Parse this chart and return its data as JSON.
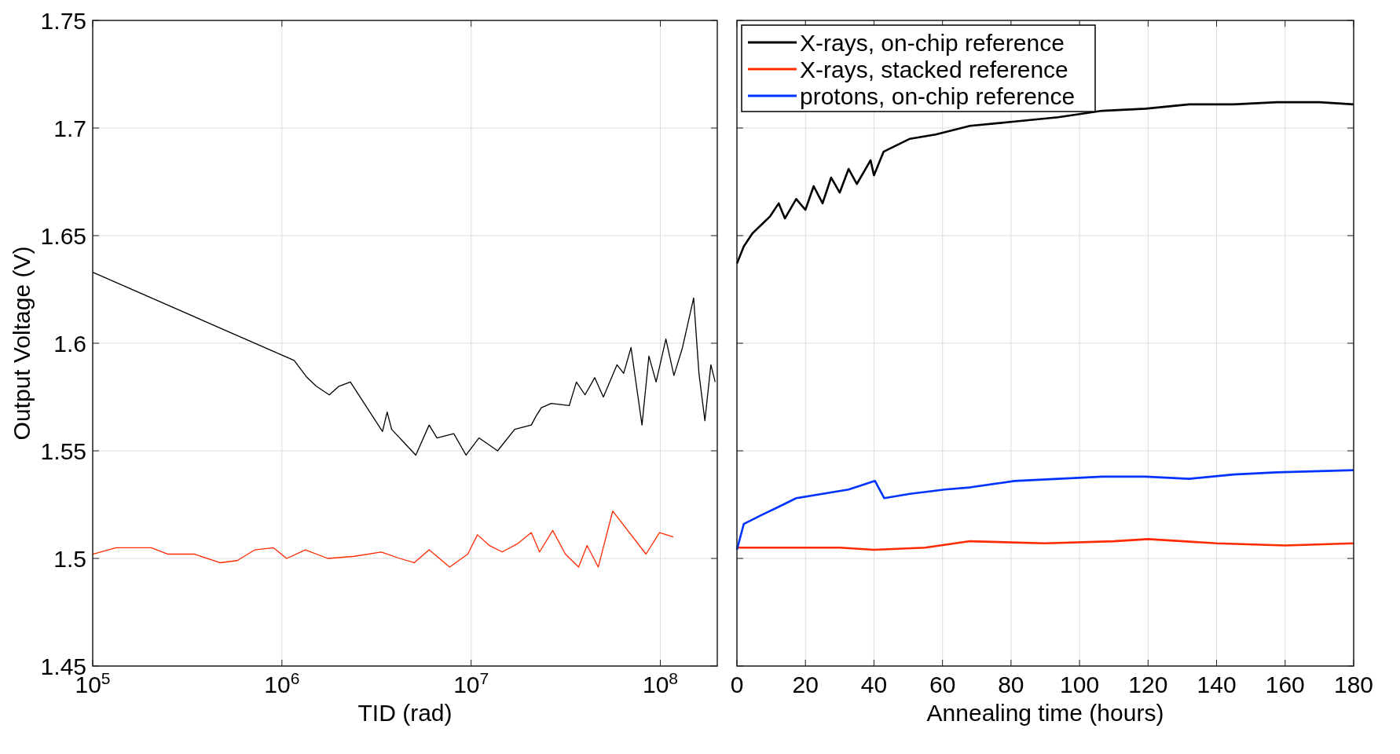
{
  "chart_data": [
    {
      "type": "line",
      "xlabel": "TID (rad)",
      "ylabel": "Output Voltage (V)",
      "log": "x",
      "grid": true,
      "legend": false,
      "xlim": [
        100000,
        200000000
      ],
      "xticks": [
        {
          "value": 100000,
          "label": "10$^{5}$"
        },
        {
          "value": 1000000,
          "label": "10$^{6}$"
        },
        {
          "value": 10000000,
          "label": "10$^{7}$"
        },
        {
          "value": 100000000,
          "label": "10$^{8}$"
        }
      ],
      "ylim": [
        1.45,
        1.75
      ],
      "yticks": [
        1.45,
        1.5,
        1.55,
        1.6,
        1.65,
        1.7,
        1.75
      ],
      "series": [
        {
          "color": "#000000",
          "x": [
            100000,
            1160000,
            1360000,
            1520000,
            1780000,
            2000000,
            2300000,
            3400000,
            3600000,
            3800000,
            5100000,
            6000000,
            6600000,
            8100000,
            9400000,
            11000000,
            13800000,
            17000000,
            20800000,
            22000000,
            23500000,
            26500000,
            33000000,
            36000000,
            40000000,
            45000000,
            50000000,
            59000000,
            64000000,
            70000000,
            80000000,
            87000000,
            95000000,
            107000000,
            118000000,
            131000000,
            150000000,
            160000000,
            172000000,
            185000000,
            195000000
          ],
          "values": [
            1.633,
            1.592,
            1.584,
            1.58,
            1.576,
            1.58,
            1.582,
            1.559,
            1.568,
            1.56,
            1.548,
            1.562,
            1.556,
            1.558,
            1.548,
            1.556,
            1.55,
            1.56,
            1.562,
            1.566,
            1.57,
            1.572,
            1.571,
            1.582,
            1.576,
            1.584,
            1.575,
            1.59,
            1.586,
            1.598,
            1.562,
            1.594,
            1.582,
            1.602,
            1.585,
            1.598,
            1.621,
            1.586,
            1.564,
            1.59,
            1.582
          ]
        },
        {
          "color": "#ff2a00",
          "x": [
            100000,
            133000,
            204000,
            250000,
            345000,
            470000,
            580000,
            720000,
            900000,
            1060000,
            1330000,
            1750000,
            2420000,
            3350000,
            4200000,
            5000000,
            6000000,
            7700000,
            9600000,
            10800000,
            12500000,
            14600000,
            17700000,
            20800000,
            23000000,
            27000000,
            31500000,
            37000000,
            41000000,
            47000000,
            56000000,
            84000000,
            99000000,
            117000000
          ],
          "values": [
            1.502,
            1.505,
            1.505,
            1.502,
            1.502,
            1.498,
            1.499,
            1.504,
            1.505,
            1.5,
            1.504,
            1.5,
            1.501,
            1.503,
            1.5,
            1.498,
            1.504,
            1.496,
            1.502,
            1.511,
            1.506,
            1.503,
            1.507,
            1.512,
            1.503,
            1.513,
            1.502,
            1.496,
            1.506,
            1.496,
            1.522,
            1.502,
            1.512,
            1.51
          ]
        }
      ]
    },
    {
      "type": "line",
      "xlabel": "Annealing time (hours)",
      "grid": true,
      "legend": "top left",
      "tick_labels": "x",
      "xlim": [
        0,
        180
      ],
      "xticks": [
        0,
        20,
        40,
        60,
        80,
        100,
        120,
        140,
        160,
        180
      ],
      "ylim": [
        1.45,
        1.75
      ],
      "yticks": [
        1.45,
        1.5,
        1.55,
        1.6,
        1.65,
        1.7,
        1.75
      ],
      "series": [
        {
          "name": "X-rays, on-chip reference",
          "color": "#000000",
          "x": [
            0,
            2,
            4.5,
            9.7,
            12.2,
            14,
            17.3,
            20,
            22.4,
            25,
            27.5,
            30,
            32.6,
            35,
            39,
            40,
            42.8,
            50.5,
            58,
            68,
            81,
            93.8,
            106.6,
            119.3,
            132,
            145,
            157.6,
            170,
            180
          ],
          "values": [
            1.637,
            1.645,
            1.651,
            1.659,
            1.665,
            1.658,
            1.667,
            1.662,
            1.673,
            1.665,
            1.677,
            1.67,
            1.681,
            1.674,
            1.685,
            1.678,
            1.689,
            1.695,
            1.697,
            1.701,
            1.703,
            1.705,
            1.708,
            1.709,
            1.711,
            1.711,
            1.712,
            1.712,
            1.711
          ]
        },
        {
          "name": "X-rays, stacked reference",
          "color": "#ff2a00",
          "x": [
            0,
            10,
            30,
            40,
            55,
            68,
            90,
            110,
            120,
            140,
            160,
            180
          ],
          "values": [
            1.505,
            1.505,
            1.505,
            1.504,
            1.505,
            1.508,
            1.507,
            1.508,
            1.509,
            1.507,
            1.506,
            1.507
          ]
        },
        {
          "name": "protons, on-chip reference",
          "color": "#0033ff",
          "x": [
            0,
            2,
            7,
            12.2,
            17.3,
            25,
            32.6,
            40.3,
            43,
            50.5,
            60.7,
            68,
            81,
            93.8,
            106.6,
            119.3,
            132,
            145,
            157.6,
            180
          ],
          "values": [
            1.504,
            1.516,
            1.52,
            1.524,
            1.528,
            1.53,
            1.532,
            1.536,
            1.528,
            1.53,
            1.532,
            1.533,
            1.536,
            1.537,
            1.538,
            1.538,
            1.537,
            1.539,
            1.54,
            1.541
          ]
        }
      ]
    }
  ]
}
